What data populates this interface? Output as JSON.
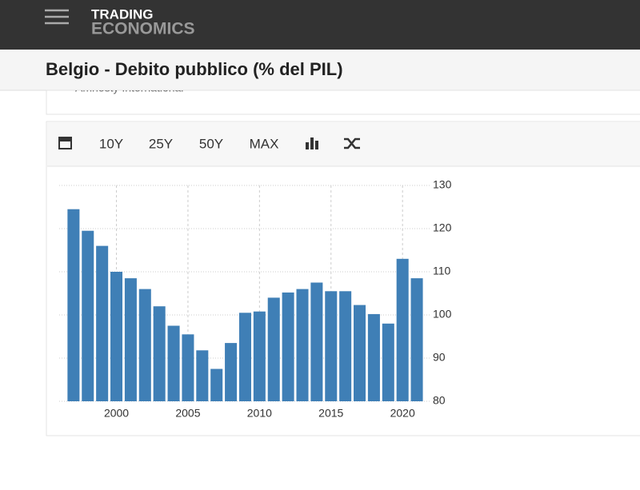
{
  "header": {
    "brand_top": "TRADING",
    "brand_bottom": "ECONOMICS",
    "title": "Belgio - Debito pubblico (% del PIL)",
    "source_note": "Amnesty International"
  },
  "toolbar": {
    "ranges": [
      "10Y",
      "25Y",
      "50Y",
      "MAX"
    ]
  },
  "chart_data": {
    "type": "bar",
    "color": "#3f7fb6",
    "grid": true,
    "x": [
      1997,
      1998,
      1999,
      2000,
      2001,
      2002,
      2003,
      2004,
      2005,
      2006,
      2007,
      2008,
      2009,
      2010,
      2011,
      2012,
      2013,
      2014,
      2015,
      2016,
      2017,
      2018,
      2019,
      2020,
      2021
    ],
    "values": [
      124.5,
      119.5,
      116,
      110,
      108.5,
      106,
      102,
      97.5,
      95.5,
      91.8,
      87.5,
      93.5,
      100.5,
      100.8,
      104,
      105.2,
      106,
      107.5,
      105.5,
      105.5,
      102.3,
      100.2,
      98,
      113,
      108.5
    ],
    "xlim": [
      1996,
      2021.5
    ],
    "xticks": [
      2000,
      2005,
      2010,
      2015,
      2020
    ],
    "ylim": [
      80,
      130
    ],
    "yticks": [
      80,
      90,
      100,
      110,
      120,
      130
    ]
  }
}
